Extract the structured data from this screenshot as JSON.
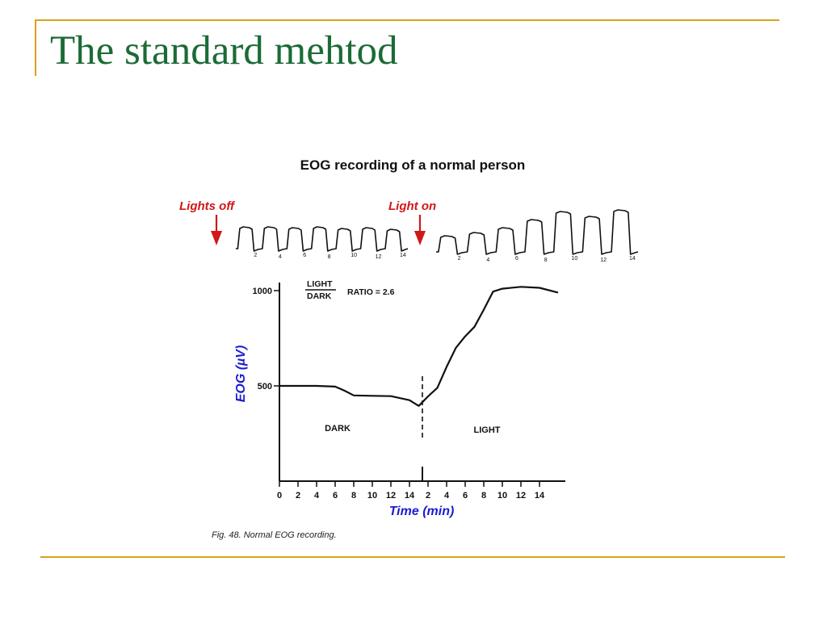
{
  "slide": {
    "title": "The standard mehtod",
    "caption": "Fig. 48. Normal EOG recording."
  },
  "colors": {
    "accent": "#d9a21b",
    "title": "#1b6b36",
    "annotation_red": "#d01818",
    "axis_label_blue": "#1c1cd0",
    "ink": "#111111"
  },
  "chart_data": {
    "type": "line",
    "title": "EOG recording of a normal person",
    "xlabel": "Time (min)",
    "ylabel": "EOG (µV)",
    "x_ticks": [
      "0",
      "2",
      "4",
      "6",
      "8",
      "10",
      "12",
      "14",
      "2",
      "4",
      "6",
      "8",
      "10",
      "12",
      "14"
    ],
    "y_ticks": [
      "500",
      "1000"
    ],
    "ylim": [
      0,
      1050
    ],
    "phases": [
      {
        "name": "DARK",
        "start_min": 0,
        "end_min": 15
      },
      {
        "name": "LIGHT",
        "start_min": 15,
        "end_min": 30
      }
    ],
    "series": [
      {
        "x": [
          0,
          2,
          4,
          6,
          7,
          8,
          10,
          12,
          14,
          15,
          16,
          17,
          18,
          19,
          20,
          21,
          22,
          23,
          24,
          26,
          28,
          30
        ],
        "values": [
          500,
          500,
          500,
          496,
          475,
          450,
          448,
          446,
          425,
          395,
          445,
          490,
          600,
          700,
          760,
          810,
          900,
          995,
          1010,
          1020,
          1015,
          990
        ]
      }
    ],
    "ratio_annotation": {
      "numerator": "LIGHT",
      "denominator": "DARK",
      "text": "RATIO = 2.6"
    },
    "annotations": [
      {
        "label": "Lights off",
        "at_min": 0
      },
      {
        "label": "Light on",
        "at_min": 15
      }
    ],
    "trace_labels": {
      "dark": [
        "2",
        "4",
        "6",
        "8",
        "10",
        "12",
        "14"
      ],
      "light": [
        "2",
        "4",
        "6",
        "8",
        "10",
        "12",
        "14"
      ]
    }
  }
}
